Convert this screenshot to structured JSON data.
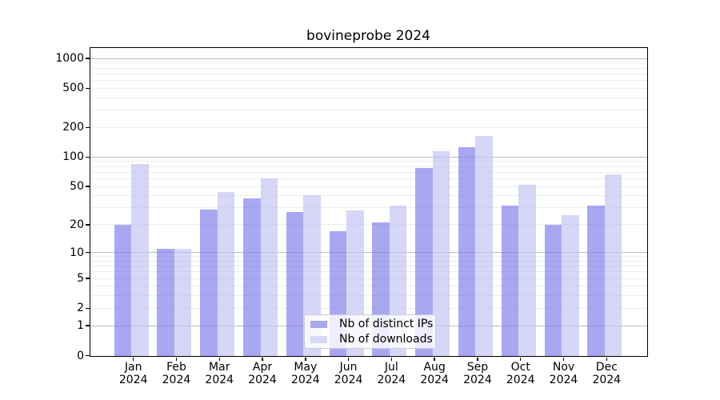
{
  "title": "bovineprobe 2024",
  "chart_data": {
    "type": "bar",
    "title": "bovineprobe 2024",
    "categories": [
      "Jan 2024",
      "Feb 2024",
      "Mar 2024",
      "Apr 2024",
      "May 2024",
      "Jun 2024",
      "Jul 2024",
      "Aug 2024",
      "Sep 2024",
      "Oct 2024",
      "Nov 2024",
      "Dec 2024"
    ],
    "series": [
      {
        "name": "Nb of distinct IPs",
        "fill": "rgba(122,122,235,0.65)",
        "legend_color": "#a9a9ef",
        "values": [
          20,
          11,
          29,
          38,
          27,
          17,
          21,
          78,
          127,
          32,
          20,
          32
        ]
      },
      {
        "name": "Nb of downloads",
        "fill": "rgba(192,192,243,0.65)",
        "legend_color": "#d7d7f7",
        "values": [
          85,
          11,
          44,
          61,
          41,
          28,
          32,
          114,
          165,
          52,
          25,
          67
        ]
      }
    ],
    "yscale": "log1p",
    "yticks": [
      0,
      1,
      2,
      5,
      10,
      20,
      50,
      100,
      200,
      500,
      1000
    ],
    "ylim": [
      0,
      1228
    ],
    "xlabel": "",
    "ylabel": "",
    "grid": true,
    "grid_minor_values": [
      2,
      3,
      4,
      5,
      6,
      7,
      8,
      9,
      20,
      30,
      40,
      50,
      60,
      70,
      80,
      90,
      200,
      300,
      400,
      500,
      600,
      700,
      800,
      900
    ],
    "grid_major_values": [
      1,
      10,
      100,
      1000
    ],
    "legend_position": "lower center"
  },
  "legend": {
    "items": [
      {
        "label": "Nb of distinct IPs",
        "color": "#a9a9ef"
      },
      {
        "label": "Nb of downloads",
        "color": "#d7d7f7"
      }
    ]
  },
  "axis_colors": {
    "grid_minor": "#ececec",
    "grid_major": "#bcbcbc",
    "spine": "#000000"
  }
}
